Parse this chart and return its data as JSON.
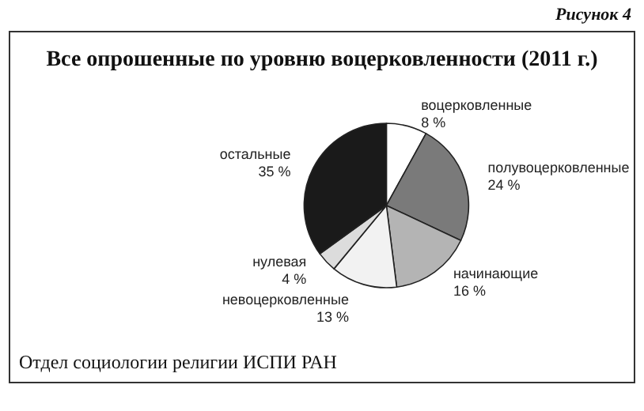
{
  "chart_data": {
    "type": "pie",
    "title": "Все опрошенные по уровню воцерковленности (2011 г.)",
    "categories": [
      "воцерковленные",
      "полувоцерковленные",
      "начинающие",
      "невоцерковленные",
      "нулевая",
      "остальные"
    ],
    "values": [
      8,
      24,
      16,
      13,
      4,
      35
    ],
    "value_labels": [
      "8 %",
      "24 %",
      "16 %",
      "13 %",
      "4 %",
      "35 %"
    ],
    "colors": [
      "#ffffff",
      "#7a7a7a",
      "#b4b4b4",
      "#f2f2f2",
      "#dcdcdc",
      "#1a1a1a"
    ],
    "annotations": [
      "Рисунок 4",
      "Отдел социологии религии ИСПИ РАН"
    ],
    "legend": false
  }
}
